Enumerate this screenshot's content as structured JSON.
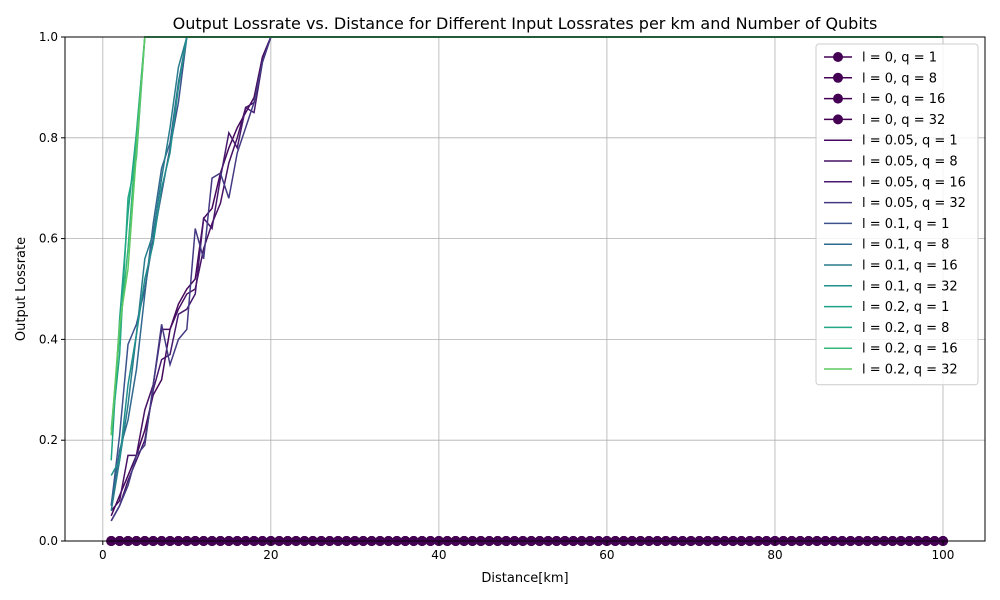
{
  "chart_data": {
    "type": "line",
    "title": "Output Lossrate vs. Distance for Different Input Lossrates per km and Number of Qubits",
    "xlabel": "Distance[km]",
    "ylabel": "Output Lossrate",
    "xlim": [
      -4.5,
      105
    ],
    "ylim": [
      0,
      1
    ],
    "x_ticks": [
      0,
      20,
      40,
      60,
      80,
      100
    ],
    "y_ticks": [
      0.0,
      0.2,
      0.4,
      0.6,
      0.8,
      1.0
    ],
    "x_tick_labels": [
      "0",
      "20",
      "40",
      "60",
      "80",
      "100"
    ],
    "y_tick_labels": [
      "0.0",
      "0.2",
      "0.4",
      "0.6",
      "0.8",
      "1.0"
    ],
    "grid": true,
    "legend_position": "top-right",
    "x_range": [
      1,
      100
    ],
    "series": [
      {
        "name": "l = 0, q = 1",
        "color": "#440154",
        "marker": "circle",
        "values": "zero"
      },
      {
        "name": "l = 0, q = 8",
        "color": "#440154",
        "marker": "circle",
        "values": "zero"
      },
      {
        "name": "l = 0, q = 16",
        "color": "#440154",
        "marker": "circle",
        "values": "zero"
      },
      {
        "name": "l = 0, q = 32",
        "color": "#440154",
        "marker": "circle",
        "values": "zero"
      },
      {
        "name": "l = 0.05, q = 1",
        "color": "#46085c",
        "marker": "none",
        "points": [
          [
            1,
            0.05
          ],
          [
            2,
            0.09
          ],
          [
            3,
            0.13
          ],
          [
            4,
            0.17
          ],
          [
            5,
            0.22
          ],
          [
            6,
            0.29
          ],
          [
            7,
            0.32
          ],
          [
            8,
            0.42
          ],
          [
            9,
            0.47
          ],
          [
            10,
            0.5
          ],
          [
            11,
            0.52
          ],
          [
            12,
            0.64
          ],
          [
            13,
            0.66
          ],
          [
            14,
            0.73
          ],
          [
            15,
            0.78
          ],
          [
            16,
            0.82
          ],
          [
            17,
            0.85
          ],
          [
            18,
            0.88
          ],
          [
            19,
            0.96
          ],
          [
            20,
            1.0
          ],
          [
            100,
            1.0
          ]
        ]
      },
      {
        "name": "l = 0.05, q = 8",
        "color": "#471164",
        "marker": "none",
        "points": [
          [
            1,
            0.06
          ],
          [
            2,
            0.08
          ],
          [
            3,
            0.17
          ],
          [
            4,
            0.17
          ],
          [
            5,
            0.26
          ],
          [
            6,
            0.31
          ],
          [
            7,
            0.42
          ],
          [
            8,
            0.42
          ],
          [
            9,
            0.46
          ],
          [
            10,
            0.49
          ],
          [
            11,
            0.5
          ],
          [
            12,
            0.58
          ],
          [
            13,
            0.63
          ],
          [
            14,
            0.67
          ],
          [
            15,
            0.75
          ],
          [
            16,
            0.8
          ],
          [
            17,
            0.86
          ],
          [
            18,
            0.87
          ],
          [
            19,
            0.96
          ],
          [
            20,
            1.0
          ],
          [
            100,
            1.0
          ]
        ]
      },
      {
        "name": "l = 0.05, q = 16",
        "color": "#47186e",
        "marker": "none",
        "points": [
          [
            1,
            0.04
          ],
          [
            2,
            0.07
          ],
          [
            3,
            0.12
          ],
          [
            4,
            0.16
          ],
          [
            5,
            0.2
          ],
          [
            6,
            0.3
          ],
          [
            7,
            0.36
          ],
          [
            8,
            0.37
          ],
          [
            9,
            0.45
          ],
          [
            10,
            0.46
          ],
          [
            11,
            0.49
          ],
          [
            12,
            0.64
          ],
          [
            13,
            0.62
          ],
          [
            14,
            0.72
          ],
          [
            15,
            0.81
          ],
          [
            16,
            0.78
          ],
          [
            17,
            0.86
          ],
          [
            18,
            0.85
          ],
          [
            19,
            0.95
          ],
          [
            20,
            1.0
          ],
          [
            100,
            1.0
          ]
        ]
      },
      {
        "name": "l = 0.05, q = 32",
        "color": "#443a83",
        "marker": "none",
        "points": [
          [
            1,
            0.04
          ],
          [
            2,
            0.07
          ],
          [
            3,
            0.11
          ],
          [
            4,
            0.17
          ],
          [
            5,
            0.19
          ],
          [
            6,
            0.31
          ],
          [
            7,
            0.43
          ],
          [
            8,
            0.35
          ],
          [
            9,
            0.4
          ],
          [
            10,
            0.42
          ],
          [
            11,
            0.62
          ],
          [
            12,
            0.56
          ],
          [
            13,
            0.72
          ],
          [
            14,
            0.73
          ],
          [
            15,
            0.68
          ],
          [
            16,
            0.77
          ],
          [
            17,
            0.82
          ],
          [
            18,
            0.87
          ],
          [
            19,
            0.95
          ],
          [
            20,
            1.0
          ],
          [
            100,
            1.0
          ]
        ]
      },
      {
        "name": "l = 0.1, q = 1",
        "color": "#3b528b",
        "marker": "none",
        "points": [
          [
            1,
            0.07
          ],
          [
            2,
            0.21
          ],
          [
            3,
            0.39
          ],
          [
            4,
            0.43
          ],
          [
            5,
            0.5
          ],
          [
            6,
            0.6
          ],
          [
            7,
            0.69
          ],
          [
            8,
            0.78
          ],
          [
            9,
            0.87
          ],
          [
            10,
            1.0
          ],
          [
            100,
            1.0
          ]
        ]
      },
      {
        "name": "l = 0.1, q = 8",
        "color": "#31688e",
        "marker": "none",
        "points": [
          [
            1,
            0.07
          ],
          [
            2,
            0.18
          ],
          [
            3,
            0.24
          ],
          [
            4,
            0.34
          ],
          [
            5,
            0.49
          ],
          [
            6,
            0.63
          ],
          [
            7,
            0.74
          ],
          [
            8,
            0.79
          ],
          [
            9,
            0.91
          ],
          [
            10,
            1.0
          ],
          [
            100,
            1.0
          ]
        ]
      },
      {
        "name": "l = 0.1, q = 16",
        "color": "#287c8e",
        "marker": "none",
        "points": [
          [
            1,
            0.06
          ],
          [
            2,
            0.16
          ],
          [
            3,
            0.27
          ],
          [
            4,
            0.41
          ],
          [
            5,
            0.56
          ],
          [
            6,
            0.61
          ],
          [
            7,
            0.72
          ],
          [
            8,
            0.82
          ],
          [
            9,
            0.94
          ],
          [
            10,
            1.0
          ],
          [
            100,
            1.0
          ]
        ]
      },
      {
        "name": "l = 0.1, q = 32",
        "color": "#21908d",
        "marker": "none",
        "points": [
          [
            1,
            0.13
          ],
          [
            2,
            0.16
          ],
          [
            3,
            0.31
          ],
          [
            4,
            0.41
          ],
          [
            5,
            0.52
          ],
          [
            6,
            0.59
          ],
          [
            7,
            0.7
          ],
          [
            8,
            0.77
          ],
          [
            9,
            0.9
          ],
          [
            10,
            1.0
          ],
          [
            100,
            1.0
          ]
        ]
      },
      {
        "name": "l = 0.2, q = 1",
        "color": "#1ea187",
        "marker": "none",
        "points": [
          [
            1,
            0.16
          ],
          [
            2,
            0.44
          ],
          [
            3,
            0.65
          ],
          [
            4,
            0.81
          ],
          [
            5,
            1.0
          ],
          [
            100,
            1.0
          ]
        ]
      },
      {
        "name": "l = 0.2, q = 8",
        "color": "#22a884",
        "marker": "none",
        "points": [
          [
            1,
            0.21
          ],
          [
            2,
            0.37
          ],
          [
            3,
            0.68
          ],
          [
            4,
            0.76
          ],
          [
            5,
            1.0
          ],
          [
            100,
            1.0
          ]
        ]
      },
      {
        "name": "l = 0.2, q = 16",
        "color": "#35b779",
        "marker": "none",
        "points": [
          [
            1,
            0.22
          ],
          [
            2,
            0.41
          ],
          [
            3,
            0.58
          ],
          [
            4,
            0.8
          ],
          [
            5,
            1.0
          ],
          [
            100,
            1.0
          ]
        ]
      },
      {
        "name": "l = 0.2, q = 32",
        "color": "#5ec962",
        "marker": "none",
        "points": [
          [
            1,
            0.21
          ],
          [
            2,
            0.43
          ],
          [
            3,
            0.54
          ],
          [
            4,
            0.77
          ],
          [
            5,
            1.0
          ],
          [
            100,
            1.0
          ]
        ]
      }
    ]
  }
}
